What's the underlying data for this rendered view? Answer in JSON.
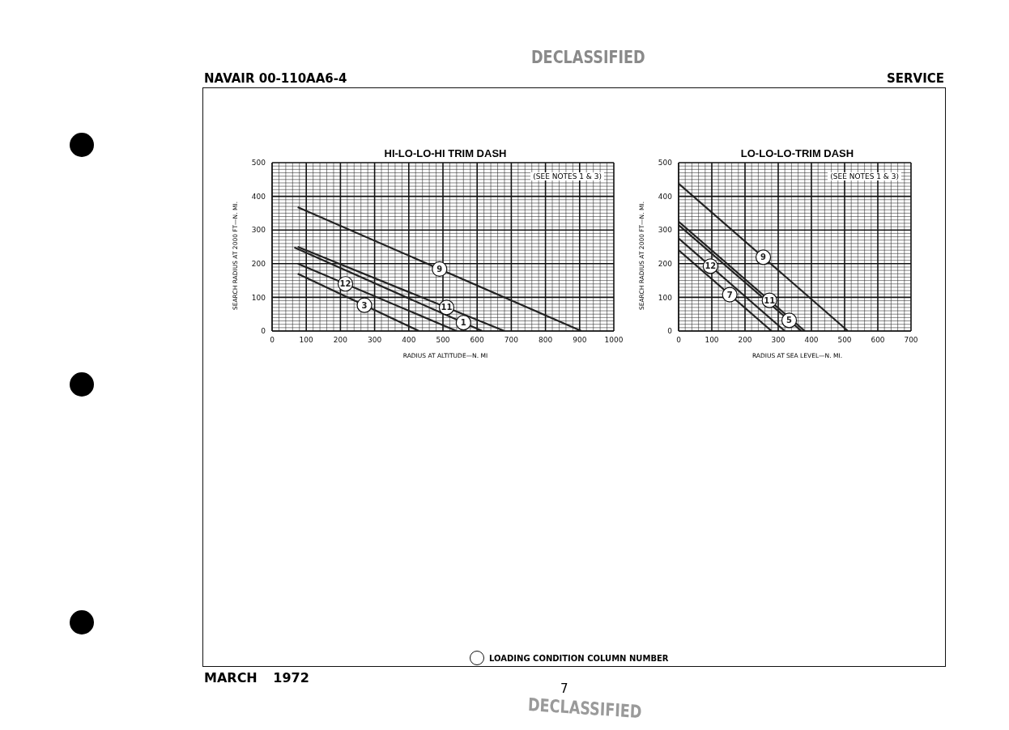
{
  "chart_data": [
    {
      "type": "line",
      "title": "HI-LO-LO-HI TRIM DASH",
      "xlabel": "RADIUS AT ALTITUDE—N. MI",
      "ylabel": "SEARCH RADIUS AT 2000 FT—N. MI.",
      "xlim": [
        0,
        1000
      ],
      "xticks": [
        0,
        100,
        200,
        300,
        400,
        500,
        600,
        700,
        800,
        900,
        1000
      ],
      "ylim": [
        0,
        500
      ],
      "yticks": [
        0,
        100,
        200,
        300,
        400,
        500
      ],
      "grid": true,
      "marker": "none",
      "line_style": "solid",
      "legend": false,
      "series": [
        {
          "name": "9",
          "color": "#222222",
          "x": [
            75,
            905
          ],
          "values": [
            368,
            0
          ]
        },
        {
          "name": "11",
          "color": "#222222",
          "x": [
            75,
            680
          ],
          "values": [
            250,
            0
          ]
        },
        {
          "name": "1",
          "color": "#222222",
          "x": [
            65,
            615
          ],
          "values": [
            248,
            0
          ]
        },
        {
          "name": "12",
          "color": "#222222",
          "x": [
            75,
            540
          ],
          "values": [
            200,
            0
          ]
        },
        {
          "name": "3",
          "color": "#222222",
          "x": [
            75,
            430
          ],
          "values": [
            170,
            0
          ]
        }
      ],
      "annotations": [
        "(SEE NOTES 1 & 3)",
        "NAVAIR 00-110AA6-4",
        "SERVICE",
        "LOADING CONDITION COLUMN NUMBER",
        "MARCH 1972",
        "7",
        "DECLASSIFIED",
        "DECLASSIFIED"
      ]
    },
    {
      "type": "line",
      "title": "LO-LO-LO-TRIM DASH",
      "xlabel": "RADIUS AT SEA LEVEL—N. MI.",
      "ylabel": "SEARCH RADIUS AT 2000 FT—N. MI.",
      "xlim": [
        0,
        700
      ],
      "xticks": [
        0,
        100,
        200,
        300,
        400,
        500,
        600,
        700
      ],
      "ylim": [
        0,
        500
      ],
      "yticks": [
        0,
        100,
        200,
        300,
        400,
        500
      ],
      "grid": true,
      "marker": "none",
      "line_style": "solid",
      "legend": false,
      "series": [
        {
          "name": "9",
          "color": "#222222",
          "x": [
            0,
            510
          ],
          "values": [
            438,
            0
          ]
        },
        {
          "name": "11",
          "color": "#222222",
          "x": [
            0,
            380
          ],
          "values": [
            325,
            0
          ]
        },
        {
          "name": "5",
          "color": "#222222",
          "x": [
            0,
            370
          ],
          "values": [
            315,
            0
          ]
        },
        {
          "name": "12",
          "color": "#222222",
          "x": [
            0,
            320
          ],
          "values": [
            275,
            0
          ]
        },
        {
          "name": "7",
          "color": "#222222",
          "x": [
            0,
            280
          ],
          "values": [
            240,
            0
          ]
        }
      ],
      "annotations": [
        "(SEE NOTES 1 & 3)"
      ]
    }
  ]
}
